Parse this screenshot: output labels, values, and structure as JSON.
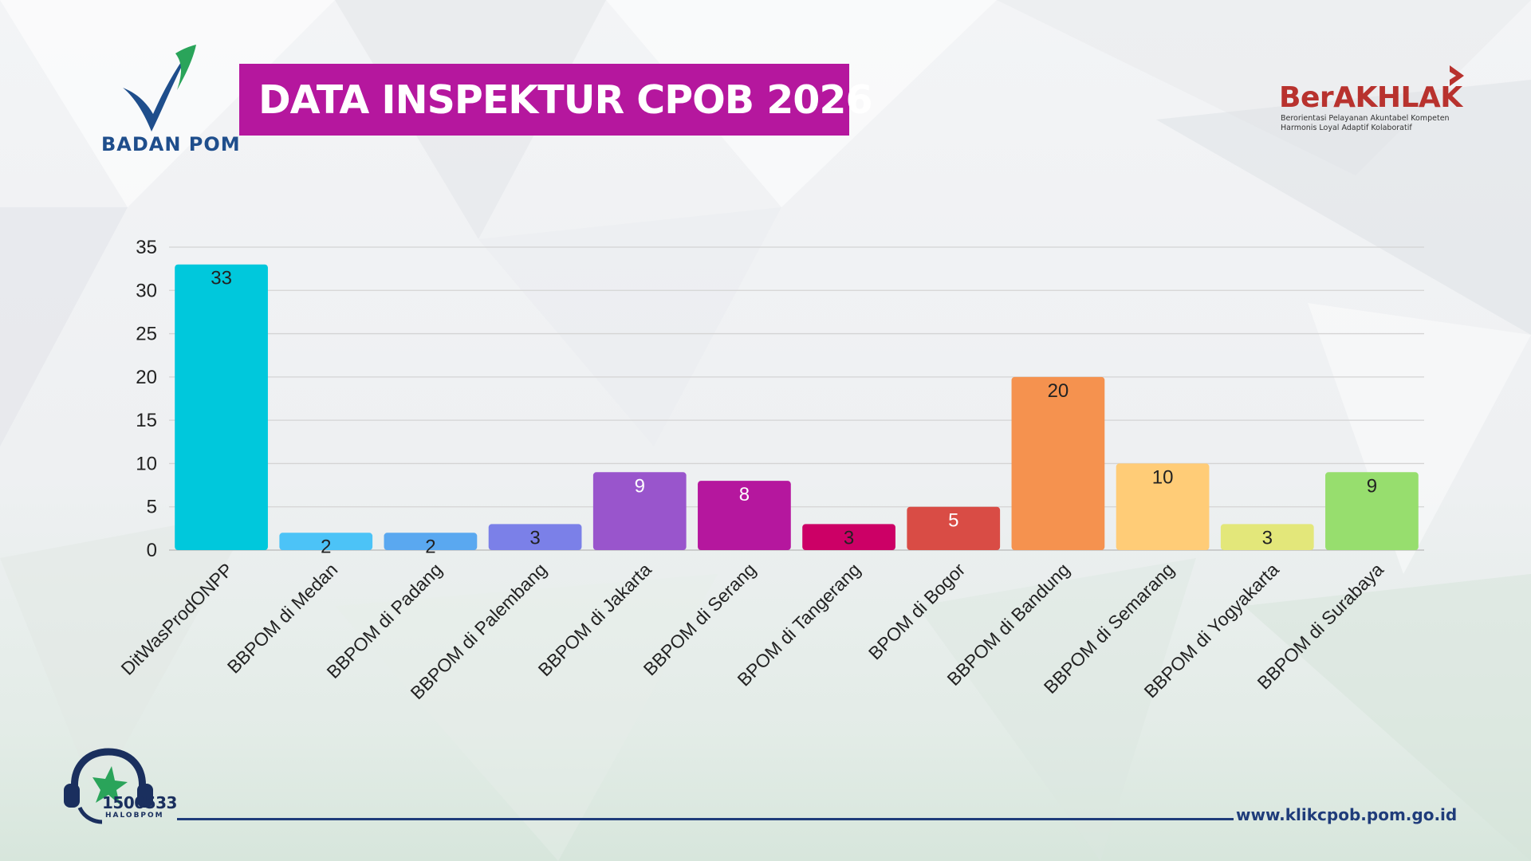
{
  "header": {
    "title": "DATA INSPEKTUR CPOB 2026",
    "logo_left_text": "BADAN POM",
    "logo_right_word": "BerAKHLAK",
    "logo_right_line1": "Berorientasi Pelayanan Akuntabel Kompeten",
    "logo_right_line2": "Harmonis Loyal Adaptif Kolaboratif"
  },
  "footer": {
    "hotline_number": "1500533",
    "hotline_label": "HALOBPOM",
    "url": "www.klikcpob.pom.go.id"
  },
  "colors": {
    "title_banner": "#b5179e",
    "footer_line": "#1f3c7a",
    "logo_blue": "#1f4e8c",
    "berakhlak_red": "#b8322e"
  },
  "chart_data": {
    "type": "bar",
    "title": "",
    "xlabel": "",
    "ylabel": "",
    "ylim": [
      0,
      35
    ],
    "yticks": [
      0,
      5,
      10,
      15,
      20,
      25,
      30,
      35
    ],
    "grid": true,
    "legend": "none",
    "categories": [
      "DitWasProdONPP",
      "BBPOM di Medan",
      "BBPOM di Padang",
      "BBPOM di Palembang",
      "BBPOM di Jakarta",
      "BBPOM di Serang",
      "BPOM di Tangerang",
      "BPOM di Bogor",
      "BBPOM di Bandung",
      "BBPOM di Semarang",
      "BBPOM di Yogyakarta",
      "BBPOM di Surabaya"
    ],
    "values": [
      33,
      2,
      2,
      3,
      9,
      8,
      3,
      5,
      20,
      10,
      3,
      9
    ],
    "bar_colors": [
      "#00c8dc",
      "#4cc3f7",
      "#5aa8f0",
      "#7b80e8",
      "#9955cc",
      "#b5179e",
      "#cc0066",
      "#d94c45",
      "#f5924f",
      "#ffcc77",
      "#e3e77a",
      "#97de6e"
    ],
    "label_colors": [
      "#222222",
      "#222222",
      "#222222",
      "#222222",
      "#ffffff",
      "#ffffff",
      "#222222",
      "#ffffff",
      "#222222",
      "#222222",
      "#222222",
      "#222222"
    ]
  }
}
